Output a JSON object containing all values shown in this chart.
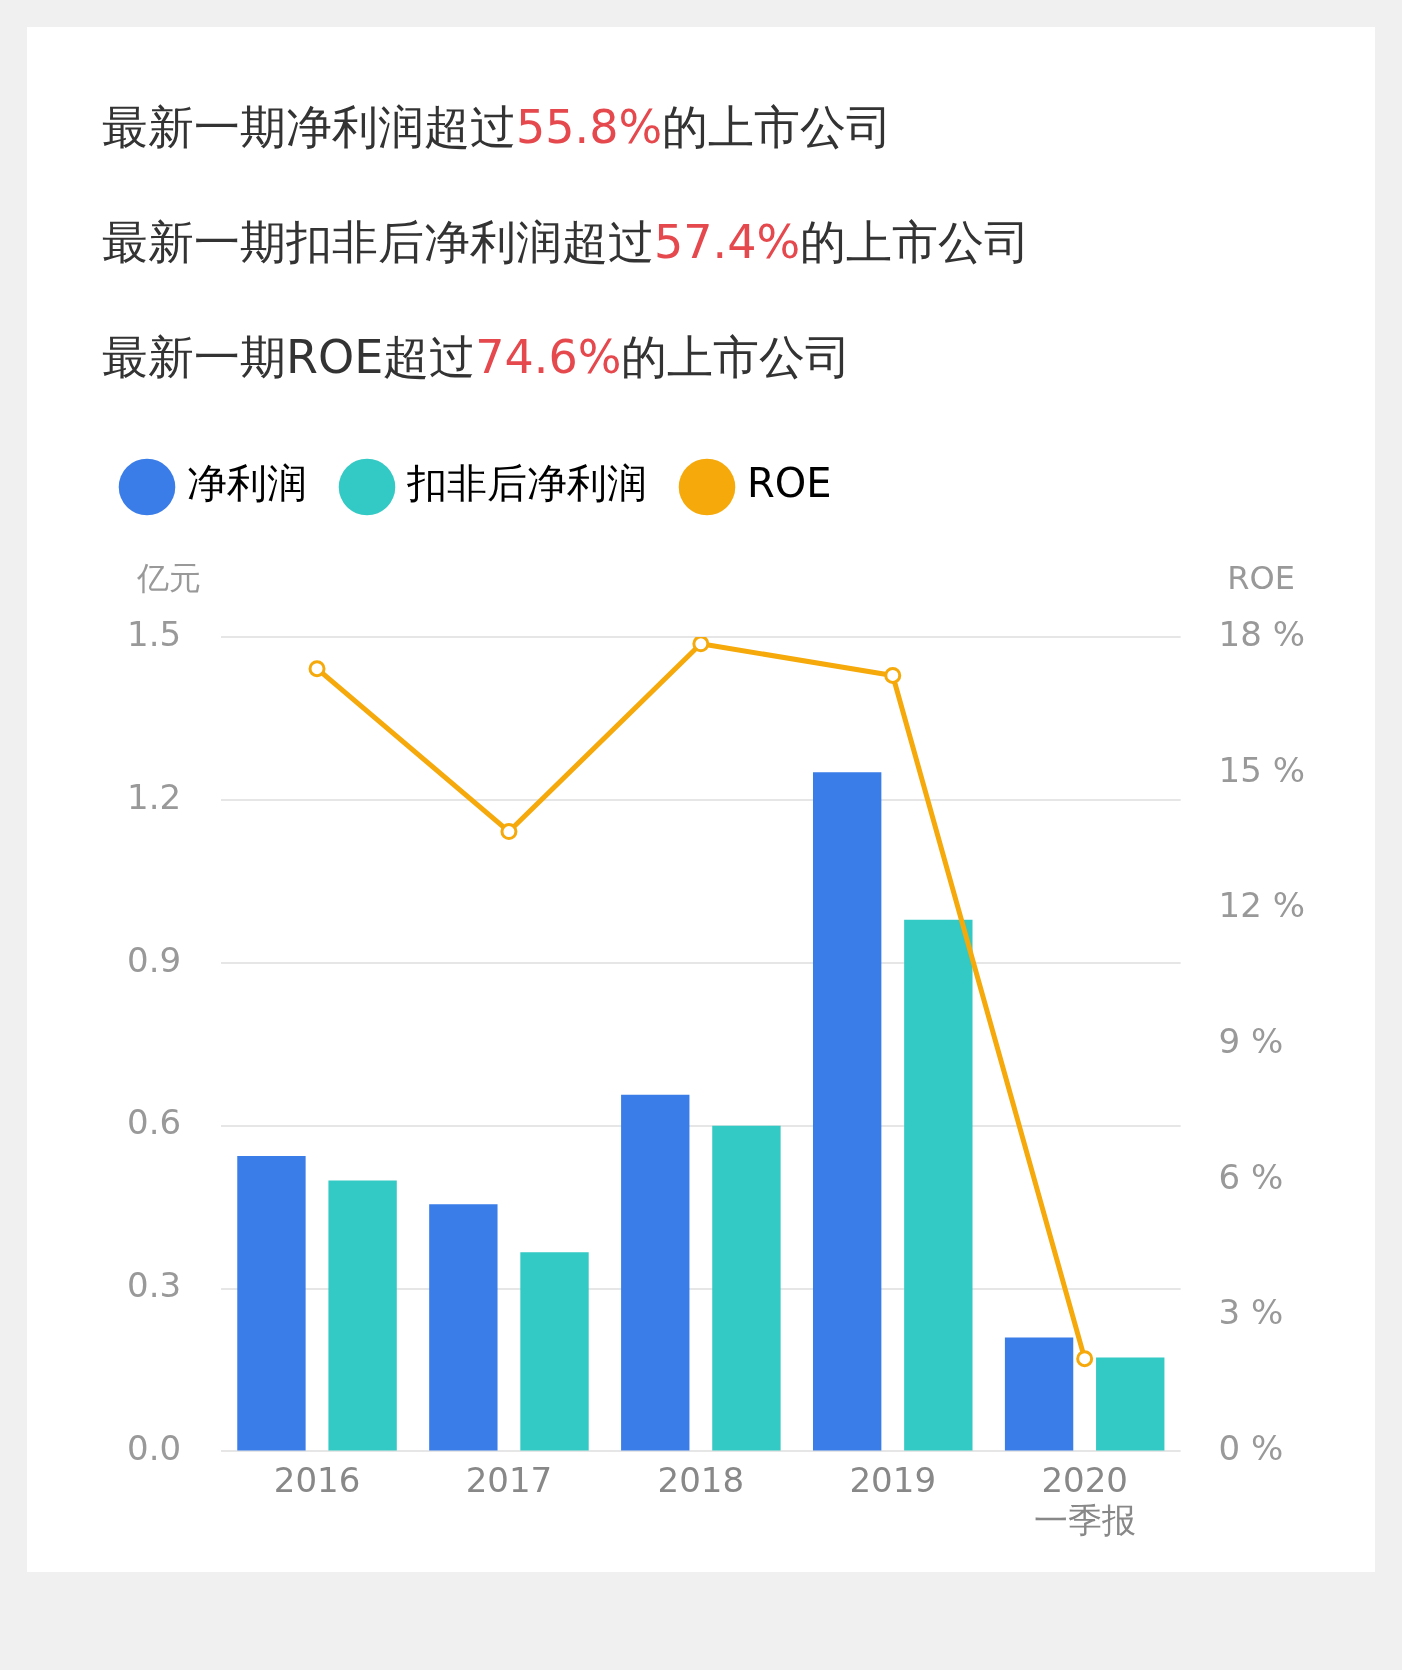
{
  "chart_data": {
    "type": "bar",
    "title": "最新一期净利润超过55.8%的上市公司",
    "subtitle": "最新一期扣非后净利润超过57.4%的上市公司",
    "annotations": [
      "最新一期ROE超过74.6%的上市公司"
    ],
    "categories": [
      "2016",
      "2017",
      "2018",
      "2019",
      "2020\n一季报"
    ],
    "series": [
      {
        "name": "净利润",
        "color": "#3a7de8",
        "values": [
          0.544,
          0.455,
          0.657,
          1.251,
          0.21
        ]
      },
      {
        "name": "扣非后净利润",
        "color": "#33c9c4",
        "values": [
          0.499,
          0.367,
          0.6,
          0.979,
          0.173
        ]
      },
      {
        "name": "ROE",
        "type": "line",
        "axis": "y2",
        "color": "#f5a90a",
        "values": [
          17.3,
          13.7,
          17.85,
          17.15,
          2.05
        ]
      }
    ],
    "ylabel": "亿元",
    "y2label": "ROE",
    "ylim": [
      0,
      1.5
    ],
    "yticks": [
      {
        "value": 0,
        "label": "0.0"
      },
      {
        "value": 0.3,
        "label": "0.3"
      },
      {
        "value": 0.6,
        "label": "0.6"
      },
      {
        "value": 0.9,
        "label": "0.9"
      },
      {
        "value": 1.2,
        "label": "1.2"
      },
      1.5
    ],
    "y2lim": [
      0,
      18
    ],
    "y2ticks": [
      {
        "value": 0,
        "label": "0 %"
      },
      {
        "value": 3,
        "label": "3 %"
      },
      {
        "value": 6,
        "label": "6 %"
      },
      {
        "value": 9,
        "label": "9 %"
      },
      {
        "value": 12,
        "label": "12 %"
      },
      {
        "value": 15,
        "label": "15 %"
      },
      {
        "value": 18,
        "label": "18 %"
      }
    ],
    "grid": "y",
    "legend": "top left",
    "marker": "circle",
    "line_style": "solid"
  }
}
